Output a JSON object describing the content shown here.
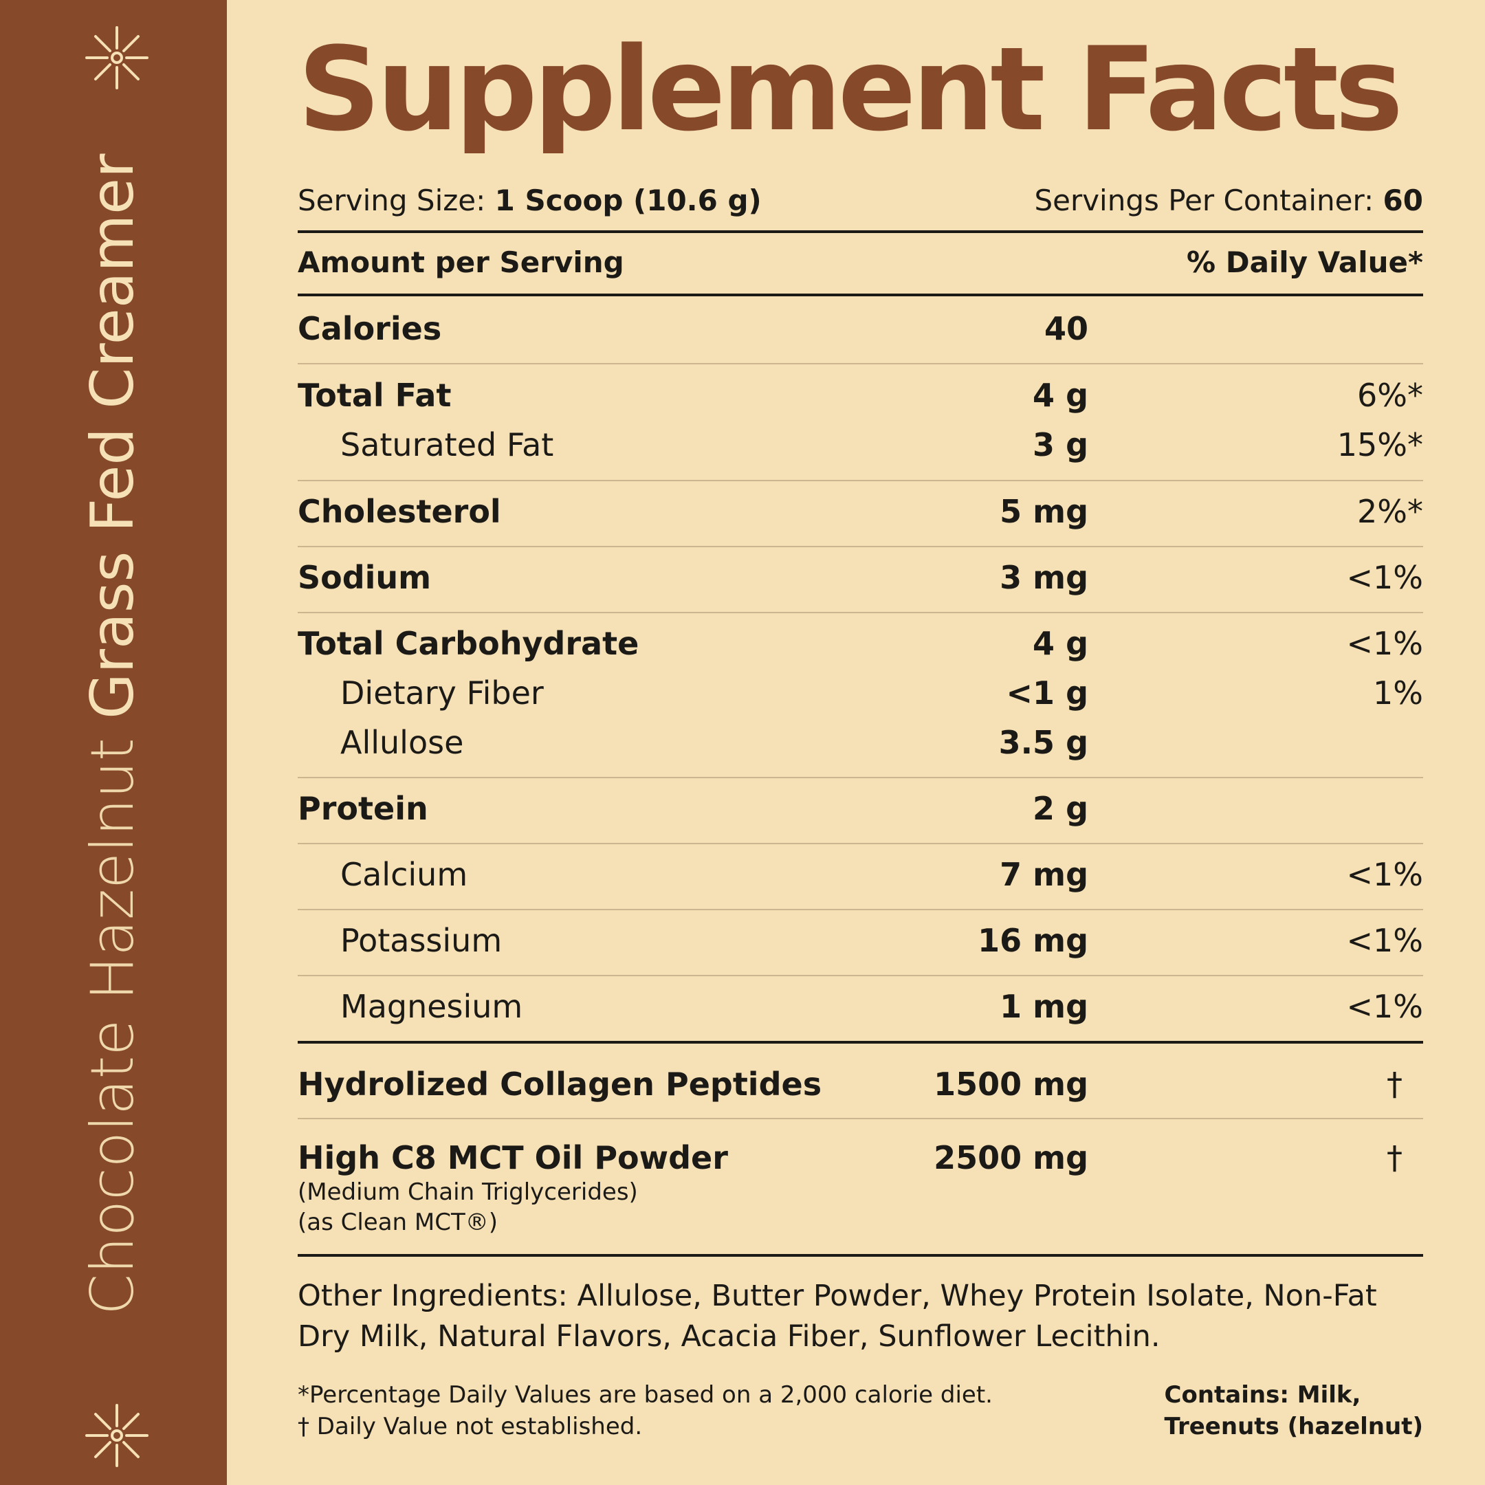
{
  "sidebar": {
    "product_light": "Chocolate Hazelnut",
    "product_strong": "Grass Fed Creamer",
    "icon": "sunburst-icon"
  },
  "title": "Supplement Facts",
  "serving": {
    "size_label": "Serving Size:",
    "size_value": "1 Scoop (10.6 g)",
    "per_container_label": "Servings Per Container:",
    "per_container_value": "60"
  },
  "header": {
    "amount_label": "Amount per Serving",
    "dv_label": "% Daily Value*"
  },
  "rows": [
    {
      "name": "Calories",
      "amount": "40",
      "dv": ""
    },
    {
      "name": "Total Fat",
      "amount": "4 g",
      "dv": "6%*"
    },
    {
      "name": "Saturated Fat",
      "amount": "3 g",
      "dv": "15%*"
    },
    {
      "name": "Cholesterol",
      "amount": "5 mg",
      "dv": "2%*"
    },
    {
      "name": "Sodium",
      "amount": "3 mg",
      "dv": "<1%"
    },
    {
      "name": "Total Carbohydrate",
      "amount": "4 g",
      "dv": "<1%"
    },
    {
      "name": "Dietary Fiber",
      "amount": "<1 g",
      "dv": "1%"
    },
    {
      "name": "Allulose",
      "amount": "3.5 g",
      "dv": ""
    },
    {
      "name": "Protein",
      "amount": "2 g",
      "dv": ""
    },
    {
      "name": "Calcium",
      "amount": "7 mg",
      "dv": "<1%"
    },
    {
      "name": "Potassium",
      "amount": "16 mg",
      "dv": "<1%"
    },
    {
      "name": "Magnesium",
      "amount": "1 mg",
      "dv": "<1%"
    },
    {
      "name": "Hydrolized Collagen Peptides",
      "amount": "1500 mg",
      "dv": "†"
    },
    {
      "name": "High C8 MCT Oil Powder",
      "amount": "2500 mg",
      "dv": "†"
    }
  ],
  "mct_notes": [
    "(Medium Chain Triglycerides)",
    "(as Clean MCT®)"
  ],
  "other_ingredients": "Other Ingredients: Allulose, Butter Powder, Whey Protein Isolate, Non-Fat Dry Milk, Natural Flavors, Acacia Fiber, Sunflower Lecithin.",
  "footnotes": [
    "*Percentage Daily Values are based on a 2,000 calorie diet.",
    "† Daily Value not established."
  ],
  "contains": [
    "Contains: Milk,",
    "Treenuts (hazelnut)"
  ],
  "colors": {
    "brown": "#864a2a",
    "cream": "#f6e0b5",
    "ink": "#1c1a16"
  }
}
